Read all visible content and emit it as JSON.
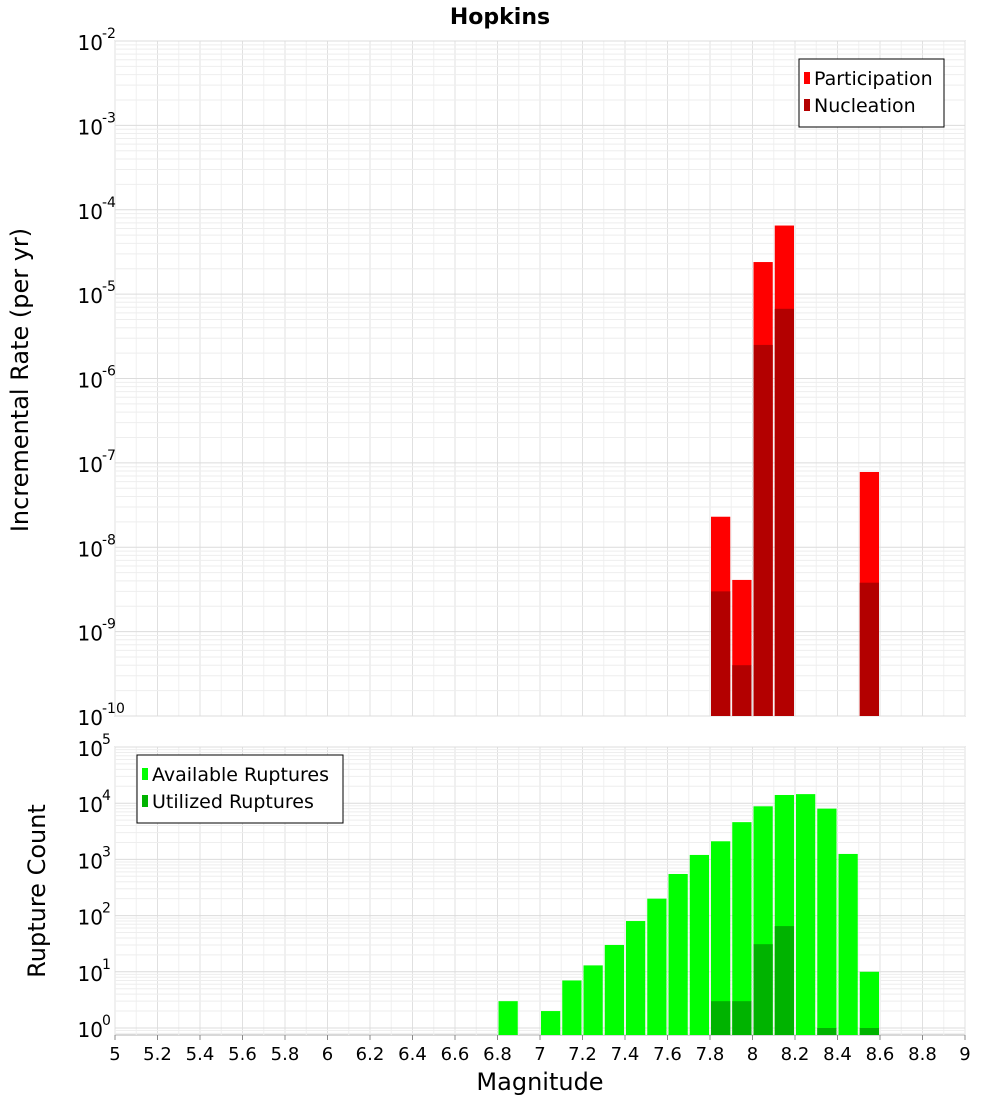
{
  "chart_data": [
    {
      "type": "bar",
      "title": "Hopkins",
      "xlabel": "",
      "ylabel": "Incremental Rate (per yr)",
      "yscale": "log",
      "xlim": [
        5,
        9
      ],
      "ylim": [
        1e-10,
        0.01
      ],
      "y_tick_exponents": [
        "-10",
        "-9",
        "-8",
        "-7",
        "-6",
        "-5",
        "-4",
        "-3",
        "-2"
      ],
      "y_tick_base": "10",
      "grid": true,
      "legend_position": "top-right",
      "bin_width": 0.1,
      "x": [
        7.85,
        7.95,
        8.05,
        8.15,
        8.55
      ],
      "series": [
        {
          "name": "Participation",
          "color": "#ff0000",
          "values": [
            2.3e-08,
            4.1e-09,
            2.4e-05,
            6.5e-05,
            7.8e-08
          ]
        },
        {
          "name": "Nucleation",
          "color": "#b30000",
          "values": [
            3e-09,
            4e-10,
            2.5e-06,
            6.7e-06,
            3.8e-09
          ]
        }
      ]
    },
    {
      "type": "bar",
      "title": "",
      "xlabel": "Magnitude",
      "ylabel": "Rupture Count",
      "yscale": "log",
      "xlim": [
        5,
        9
      ],
      "ylim": [
        0.75,
        100000.0
      ],
      "y_tick_exponents": [
        "0",
        "1",
        "2",
        "3",
        "4",
        "5"
      ],
      "y_tick_base": "10",
      "x_tick_labels": [
        "5",
        "5.2",
        "5.4",
        "5.6",
        "5.8",
        "6",
        "6.2",
        "6.4",
        "6.6",
        "6.8",
        "7",
        "7.2",
        "7.4",
        "7.6",
        "7.8",
        "8",
        "8.2",
        "8.4",
        "8.6",
        "8.8",
        "9"
      ],
      "grid": true,
      "legend_position": "top-left",
      "bin_width": 0.1,
      "series": [
        {
          "name": "Available Ruptures",
          "color": "#00ff00",
          "x": [
            6.85,
            7.05,
            7.15,
            7.25,
            7.35,
            7.45,
            7.55,
            7.65,
            7.75,
            7.85,
            7.95,
            8.05,
            8.15,
            8.25,
            8.35,
            8.45,
            8.55
          ],
          "values": [
            3,
            2,
            7,
            13,
            30,
            80,
            200,
            550,
            1200,
            2100,
            4600,
            8800,
            14000,
            14500,
            8000,
            1250,
            10
          ]
        },
        {
          "name": "Utilized Ruptures",
          "color": "#00b300",
          "x": [
            7.85,
            7.95,
            8.05,
            8.15,
            8.35,
            8.55
          ],
          "values": [
            3,
            3,
            31,
            65,
            1,
            1
          ]
        }
      ]
    }
  ]
}
